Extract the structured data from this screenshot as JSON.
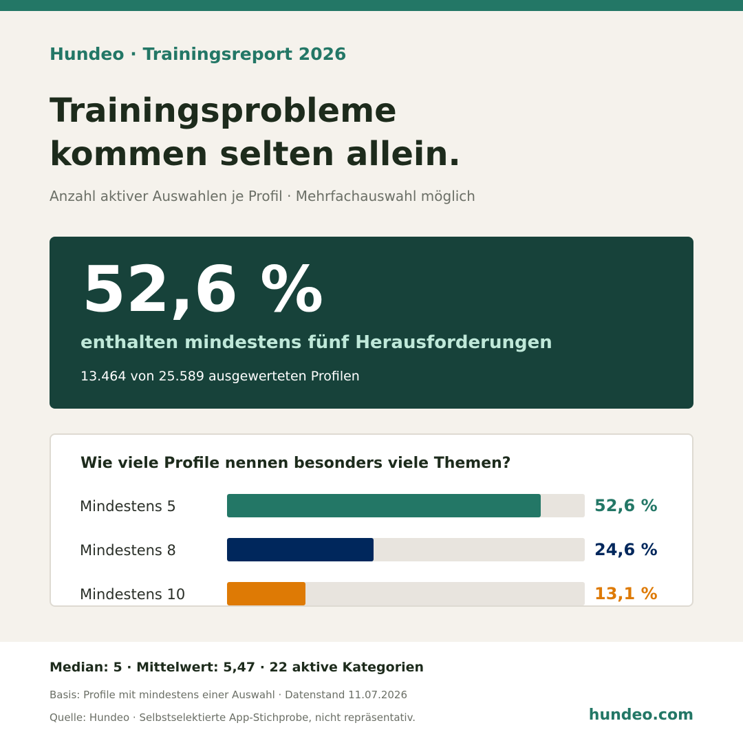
{
  "brand": "Hundeo · Trainingsreport 2026",
  "headline": [
    "Trainingsprobleme",
    "kommen selten allein."
  ],
  "subtitle": "Anzahl aktiver Auswahlen je Profil · Mehrfachauswahl möglich",
  "highlight": {
    "value": "52,6 %",
    "label": "enthalten mindestens fünf Herausforderungen",
    "detail": "13.464 von 25.589 ausgewerteten Profilen"
  },
  "chart_data": {
    "type": "bar",
    "orientation": "horizontal",
    "title": "Wie viele Profile nennen besonders viele Themen?",
    "categories": [
      "Mindestens 5",
      "Mindestens 8",
      "Mindestens 10"
    ],
    "values": [
      52.6,
      24.6,
      13.1
    ],
    "value_labels": [
      "52,6 %",
      "24,6 %",
      "13,1 %"
    ],
    "colors": [
      "#237766",
      "#00275c",
      "#de7a05"
    ],
    "unit": "%",
    "xlim": [
      0,
      60
    ],
    "grid": false
  },
  "footer": {
    "stats": "Median: 5 · Mittelwert: 5,47 · 22 aktive Kategorien",
    "basis": "Basis: Profile mit mindestens einer Auswahl · Datenstand 11.07.2026",
    "source": "Quelle: Hundeo · Selbstselektierte App-Stichprobe, nicht repräsentativ.",
    "url": "hundeo.com"
  },
  "colors": {
    "accent": "#237766",
    "dark_panel": "#17423a",
    "panel_label": "#bfe8d9",
    "background": "#f5f2ec"
  }
}
